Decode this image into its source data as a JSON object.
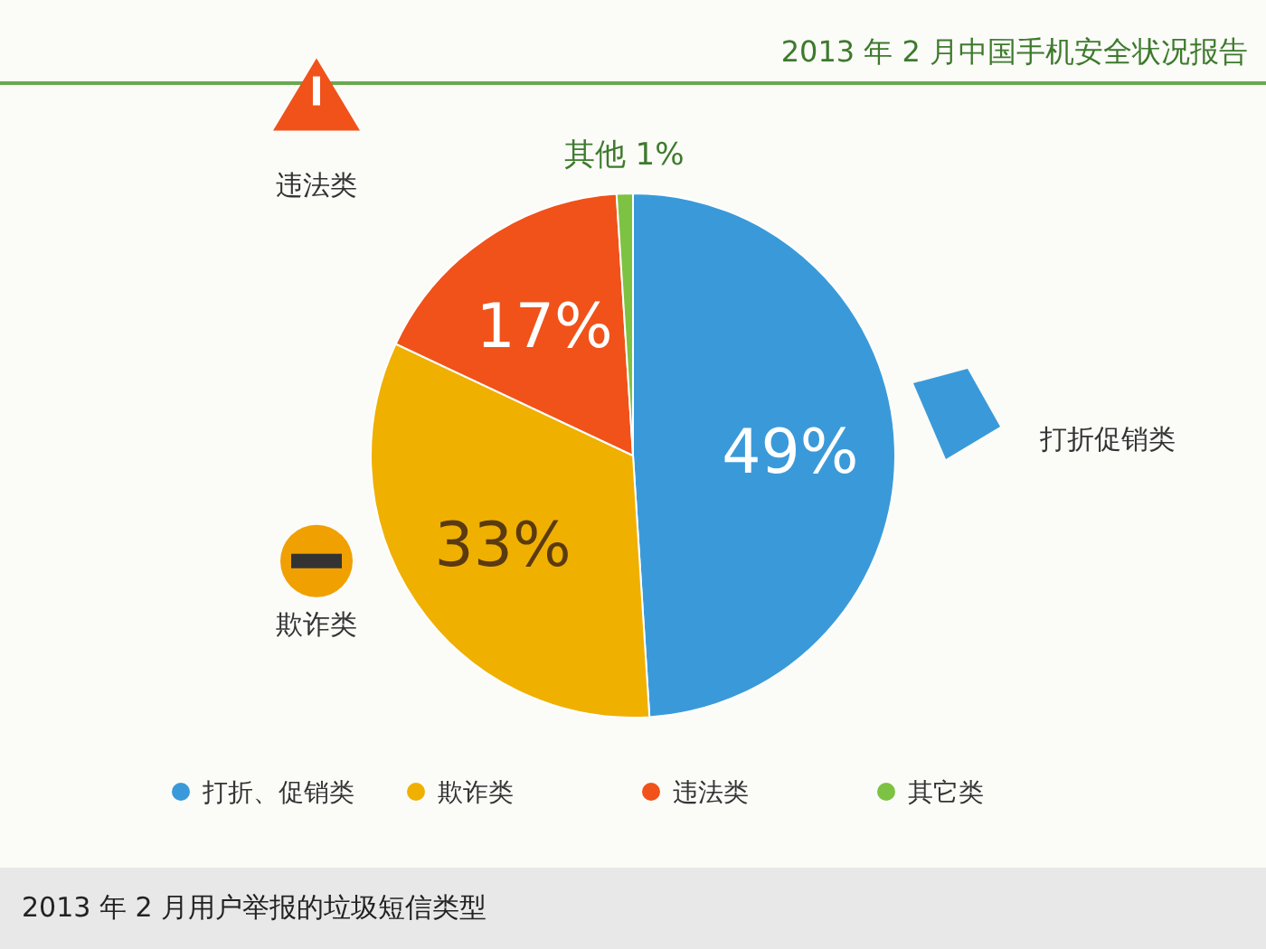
{
  "chart_data": {
    "type": "pie",
    "title": "2013 年 2 月中国手机安全状况报告",
    "subtitle": "2013 年 2 月用户举报的垃圾短信类型",
    "categories": [
      "打折、促销类",
      "欺诈类",
      "违法类",
      "其它类"
    ],
    "values": [
      49,
      33,
      17,
      1
    ],
    "colors": [
      "#3a9ad9",
      "#f0b000",
      "#f0521a",
      "#7dc242"
    ],
    "value_labels": [
      "49%",
      "33%",
      "17%",
      "其他 1%"
    ],
    "annotations": [
      "打折促销类",
      "欺诈类",
      "违法类"
    ],
    "legend": "bottom"
  }
}
